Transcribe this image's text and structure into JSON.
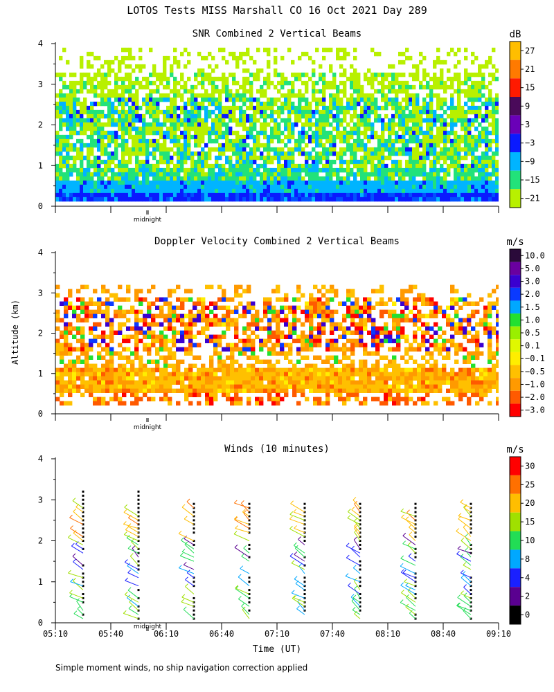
{
  "figure": {
    "title": "LOTOS Tests MISS Marshall CO  16 Oct 2021 Day 289",
    "ylabel": "Altitude (km)",
    "xlabel": "Time (UT)",
    "midnight_label": "midnight",
    "footnote": "Simple moment winds, no ship navigation correction applied"
  },
  "chart_data": [
    {
      "type": "heatmap",
      "title": "SNR Combined 2 Vertical Beams",
      "ylim": [
        0,
        4
      ],
      "yticks": [
        "0",
        "1",
        "2",
        "3",
        "4"
      ],
      "xlim": [
        "05:10",
        "09:10"
      ],
      "colorbar": {
        "unit": "dB",
        "labels": [
          "27",
          "21",
          "15",
          "9",
          "3",
          "−3",
          "−9",
          "−15",
          "−21"
        ],
        "colors": [
          "#ffbe00",
          "#ff7a00",
          "#ff1a00",
          "#4a0a5a",
          "#6a00b8",
          "#0a1aff",
          "#00b4ff",
          "#22e27a",
          "#b8f000"
        ]
      },
      "layers": [
        {
          "altitude_km": [
            0.2,
            0.35
          ],
          "color": "#0a1aff"
        },
        {
          "altitude_km": [
            0.35,
            0.75
          ],
          "color": "#00b4ff"
        },
        {
          "altitude_km": [
            0.75,
            1.1
          ],
          "color": "#22e27a"
        },
        {
          "altitude_km": [
            1.1,
            3.5
          ],
          "color": "#b8f000"
        }
      ]
    },
    {
      "type": "heatmap",
      "title": "Doppler Velocity Combined 2 Vertical Beams",
      "ylim": [
        0,
        4
      ],
      "yticks": [
        "0",
        "1",
        "2",
        "3",
        "4"
      ],
      "xlim": [
        "05:10",
        "09:10"
      ],
      "colorbar": {
        "unit": "m/s",
        "labels": [
          "10.0",
          "5.0",
          "3.0",
          "2.0",
          "1.5",
          "1.0",
          "0.5",
          "0.1",
          "−0.1",
          "−0.5",
          "−1.0",
          "−2.0",
          "−3.0"
        ],
        "colors": [
          "#2a0a3a",
          "#6a00a0",
          "#3a00d0",
          "#0a3aff",
          "#00a8ff",
          "#22e030",
          "#9aef00",
          "#e0f800",
          "#ffee00",
          "#ffc000",
          "#ff9a00",
          "#ff5a00",
          "#ff0000"
        ]
      },
      "layers": [
        {
          "altitude_km": [
            0.6,
            1.2
          ],
          "color": "#ffc000"
        },
        {
          "altitude_km": [
            1.5,
            3.0
          ],
          "color": "#ff9a00"
        }
      ]
    },
    {
      "type": "scatter",
      "title": "Winds (10 minutes)",
      "ylim": [
        0,
        4
      ],
      "yticks": [
        "0",
        "1",
        "2",
        "3",
        "4"
      ],
      "x": [
        "05:10",
        "05:40",
        "06:10",
        "06:40",
        "07:10",
        "07:40",
        "08:10",
        "08:40",
        "09:10"
      ],
      "profile_times": [
        "05:25",
        "05:55",
        "06:25",
        "06:55",
        "07:25",
        "07:55",
        "08:25",
        "08:55"
      ],
      "profile_top_km": [
        3.3,
        3.3,
        3.0,
        3.0,
        3.0,
        3.0,
        3.0,
        3.0
      ],
      "colorbar": {
        "unit": "m/s",
        "labels": [
          "30",
          "25",
          "20",
          "15",
          "10",
          "8",
          "4",
          "2",
          "0"
        ],
        "colors": [
          "#ff0000",
          "#ff7000",
          "#ffbe00",
          "#a0e000",
          "#22dd55",
          "#00a8ff",
          "#1a20ff",
          "#5a0090",
          "#000000"
        ]
      }
    }
  ]
}
